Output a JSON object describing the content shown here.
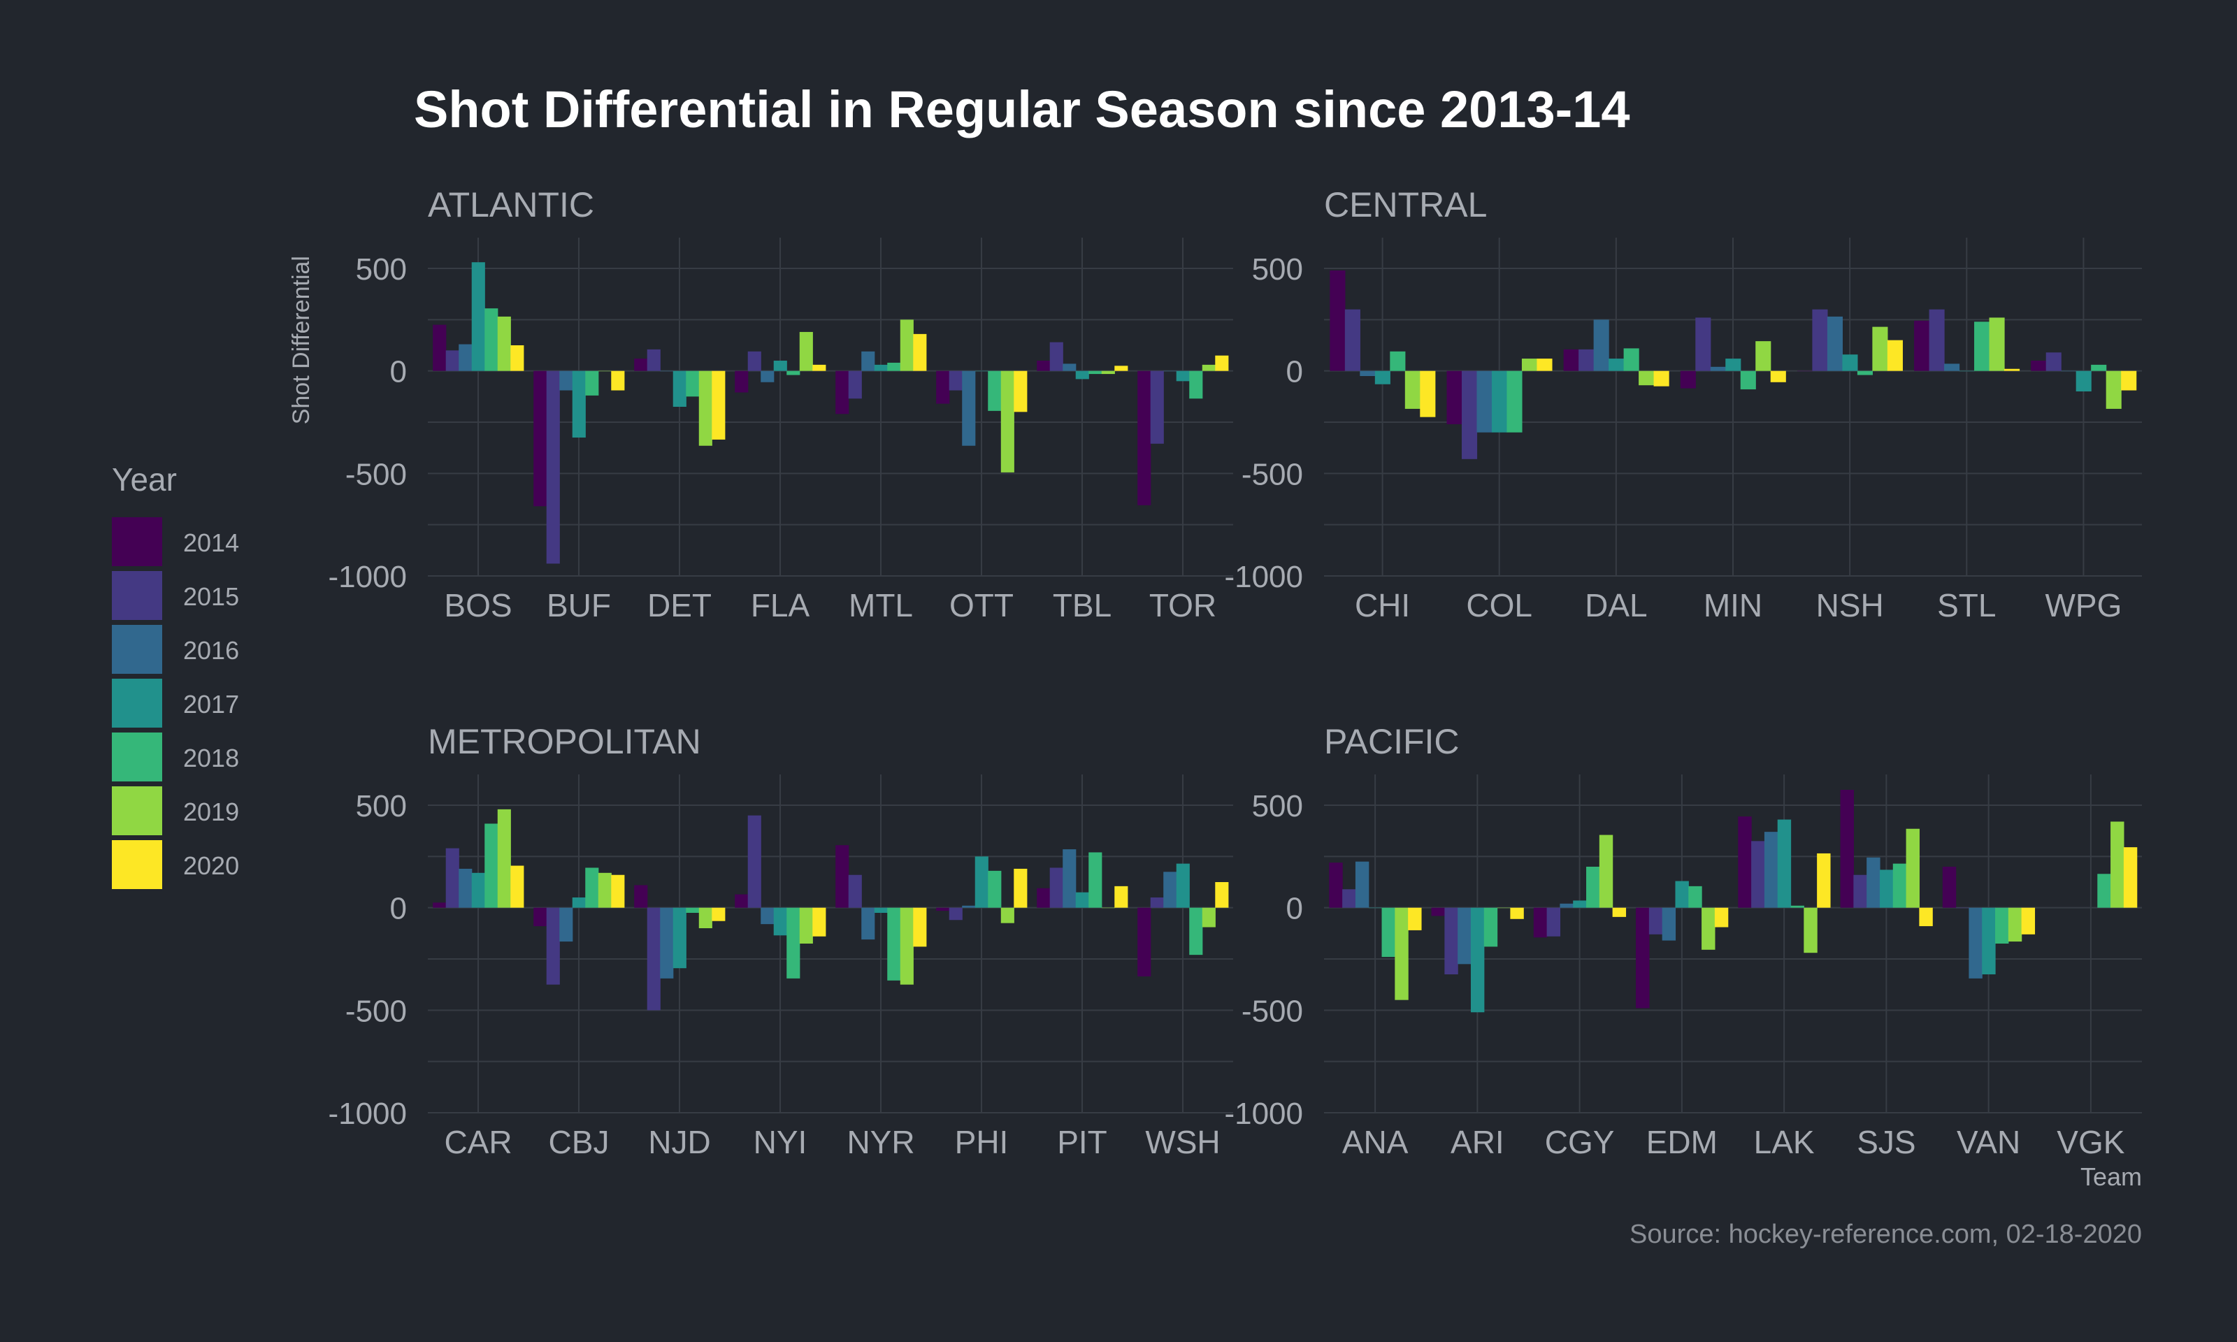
{
  "chart_data": {
    "type": "bar",
    "title": "Shot Differential in Regular Season since 2013-14",
    "ylabel": "Shot Differential",
    "xlabel": "Team",
    "caption": "Source: hockey-reference.com, 02-18-2020",
    "legend_title": "Year",
    "legend_position": "left",
    "years": [
      "2014",
      "2015",
      "2016",
      "2017",
      "2018",
      "2019",
      "2020"
    ],
    "colors": [
      "#440154",
      "#443983",
      "#31688e",
      "#21918c",
      "#35b779",
      "#90d743",
      "#fde725"
    ],
    "ylim": [
      -1000,
      650
    ],
    "yticks": [
      -1000,
      -500,
      0,
      500
    ],
    "grid": true,
    "facets": [
      {
        "name": "ATLANTIC",
        "teams": [
          {
            "team": "BOS",
            "values": [
              225,
              100,
              130,
              530,
              305,
              265,
              125
            ]
          },
          {
            "team": "BUF",
            "values": [
              -660,
              -940,
              -95,
              -325,
              -120,
              0,
              -95
            ]
          },
          {
            "team": "DET",
            "values": [
              60,
              105,
              0,
              -175,
              -125,
              -365,
              -335
            ]
          },
          {
            "team": "FLA",
            "values": [
              -105,
              95,
              -55,
              50,
              -20,
              190,
              30
            ]
          },
          {
            "team": "MTL",
            "values": [
              -210,
              -135,
              95,
              30,
              40,
              250,
              180
            ]
          },
          {
            "team": "OTT",
            "values": [
              -160,
              -95,
              -365,
              0,
              -195,
              -495,
              -200
            ]
          },
          {
            "team": "TBL",
            "values": [
              50,
              140,
              35,
              -40,
              -15,
              -15,
              25
            ]
          },
          {
            "team": "TOR",
            "values": [
              -655,
              -355,
              0,
              -50,
              -135,
              30,
              75
            ]
          }
        ]
      },
      {
        "name": "CENTRAL",
        "teams": [
          {
            "team": "CHI",
            "values": [
              490,
              300,
              -25,
              -65,
              95,
              -185,
              -225
            ]
          },
          {
            "team": "COL",
            "values": [
              -260,
              -430,
              -300,
              -300,
              -300,
              60,
              60
            ]
          },
          {
            "team": "DAL",
            "values": [
              105,
              105,
              250,
              60,
              110,
              -70,
              -75
            ]
          },
          {
            "team": "MIN",
            "values": [
              -85,
              260,
              20,
              60,
              -90,
              145,
              -55
            ]
          },
          {
            "team": "NSH",
            "values": [
              0,
              300,
              265,
              80,
              -20,
              215,
              150
            ]
          },
          {
            "team": "STL",
            "values": [
              245,
              300,
              35,
              0,
              240,
              260,
              10
            ]
          },
          {
            "team": "WPG",
            "values": [
              50,
              90,
              0,
              -100,
              30,
              -185,
              -95
            ]
          }
        ]
      },
      {
        "name": "METROPOLITAN",
        "teams": [
          {
            "team": "CAR",
            "values": [
              25,
              290,
              190,
              170,
              410,
              480,
              205
            ]
          },
          {
            "team": "CBJ",
            "values": [
              -90,
              -375,
              -165,
              50,
              195,
              170,
              160
            ]
          },
          {
            "team": "NJD",
            "values": [
              110,
              -500,
              -345,
              -295,
              -25,
              -100,
              -65
            ]
          },
          {
            "team": "NYI",
            "values": [
              65,
              450,
              -80,
              -135,
              -345,
              -175,
              -140
            ]
          },
          {
            "team": "NYR",
            "values": [
              305,
              160,
              -155,
              -25,
              -355,
              -375,
              -190
            ]
          },
          {
            "team": "PHI",
            "values": [
              -15,
              -60,
              10,
              250,
              180,
              -75,
              190
            ]
          },
          {
            "team": "PIT",
            "values": [
              95,
              195,
              285,
              75,
              270,
              0,
              105
            ]
          },
          {
            "team": "WSH",
            "values": [
              -335,
              50,
              175,
              215,
              -230,
              -95,
              125
            ]
          }
        ]
      },
      {
        "name": "PACIFIC",
        "teams": [
          {
            "team": "ANA",
            "values": [
              220,
              90,
              225,
              0,
              -240,
              -450,
              -110
            ]
          },
          {
            "team": "ARI",
            "values": [
              -40,
              -325,
              -275,
              -510,
              -190,
              0,
              -55
            ]
          },
          {
            "team": "CGY",
            "values": [
              -145,
              -140,
              20,
              35,
              200,
              355,
              -45
            ]
          },
          {
            "team": "EDM",
            "values": [
              -490,
              -130,
              -160,
              130,
              105,
              -205,
              -95
            ]
          },
          {
            "team": "LAK",
            "values": [
              445,
              325,
              370,
              430,
              10,
              -220,
              265
            ]
          },
          {
            "team": "SJS",
            "values": [
              575,
              160,
              245,
              185,
              215,
              385,
              -90
            ]
          },
          {
            "team": "VAN",
            "values": [
              200,
              0,
              -345,
              -325,
              -175,
              -165,
              -130
            ]
          },
          {
            "team": "VGK",
            "values": [
              null,
              null,
              null,
              null,
              165,
              420,
              295
            ]
          }
        ]
      }
    ]
  }
}
